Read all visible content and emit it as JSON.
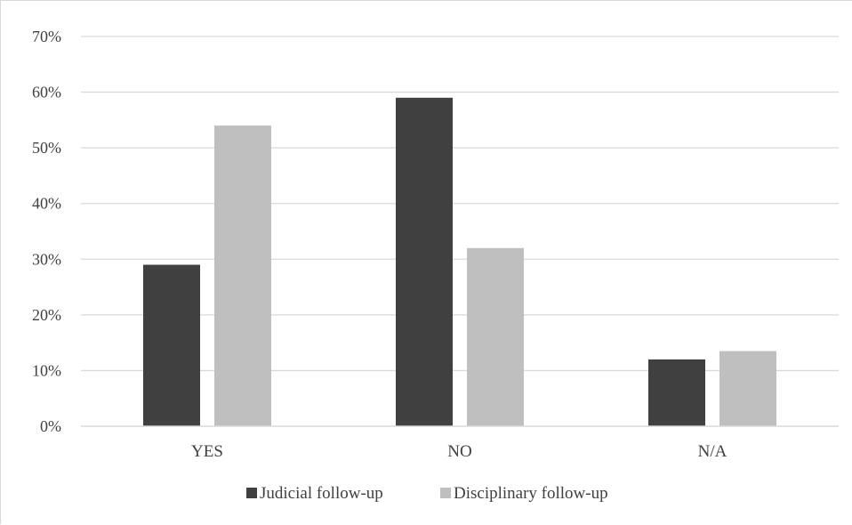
{
  "chart_data": {
    "type": "bar",
    "title": "",
    "xlabel": "",
    "ylabel": "",
    "categories": [
      "YES",
      "NO",
      "N/A"
    ],
    "series": [
      {
        "name": "Judicial follow-up",
        "values": [
          0.29,
          0.59,
          0.12
        ],
        "color": "#404040"
      },
      {
        "name": "Disciplinary follow-up",
        "values": [
          0.54,
          0.32,
          0.135
        ],
        "color": "#bfbfbf"
      }
    ],
    "ylim": [
      0,
      0.7
    ],
    "yticks": [
      {
        "value": 0.0,
        "label": "0%"
      },
      {
        "value": 0.1,
        "label": "10%"
      },
      {
        "value": 0.2,
        "label": "20%"
      },
      {
        "value": 0.3,
        "label": "30%"
      },
      {
        "value": 0.4,
        "label": "40%"
      },
      {
        "value": 0.5,
        "label": "50%"
      },
      {
        "value": 0.6,
        "label": "60%"
      },
      {
        "value": 0.7,
        "label": "70%"
      }
    ],
    "grid": true,
    "gridline_color": "#d9d9d9",
    "legend_position": "bottom"
  }
}
